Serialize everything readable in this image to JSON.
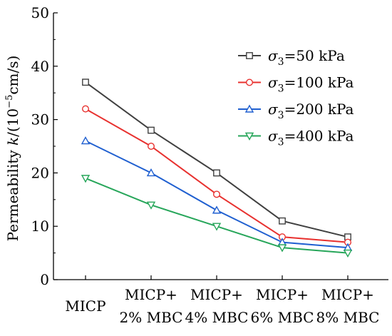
{
  "chart_data": {
    "type": "line",
    "title": "",
    "xlabel": "",
    "ylabel": {
      "prefix": "Permeability ",
      "symbol": "k",
      "middle": "/(10",
      "exponent": "−5",
      "suffix": "cm/s)"
    },
    "ylim": [
      0,
      50
    ],
    "yticks": [
      0,
      10,
      20,
      30,
      40,
      50
    ],
    "categories": [
      {
        "line1": "MICP",
        "line2": ""
      },
      {
        "line1": "MICP+",
        "line2": "2% MBC"
      },
      {
        "line1": "MICP+",
        "line2": "4% MBC"
      },
      {
        "line1": "MICP+",
        "line2": "6% MBC"
      },
      {
        "line1": "MICP+",
        "line2": "8% MBC"
      }
    ],
    "grid": false,
    "legend_position": "top-right",
    "series": [
      {
        "name": "σ3=50 kPa",
        "name_parts": {
          "symbol": "σ",
          "sub": "3",
          "rest": "=50 kPa"
        },
        "values": [
          37,
          28,
          20,
          11,
          8
        ],
        "color": "#404040",
        "marker": "square"
      },
      {
        "name": "σ3=100 kPa",
        "name_parts": {
          "symbol": "σ",
          "sub": "3",
          "rest": "=100 kPa"
        },
        "values": [
          32,
          25,
          16,
          8,
          7
        ],
        "color": "#e8312f",
        "marker": "circle"
      },
      {
        "name": "σ3=200 kPa",
        "name_parts": {
          "symbol": "σ",
          "sub": "3",
          "rest": "=200 kPa"
        },
        "values": [
          26,
          20,
          13,
          7,
          6
        ],
        "color": "#1f5fd0",
        "marker": "triangle-up"
      },
      {
        "name": "σ3=400 kPa",
        "name_parts": {
          "symbol": "σ",
          "sub": "3",
          "rest": "=400 kPa"
        },
        "values": [
          19,
          14,
          10,
          6,
          5
        ],
        "color": "#27a65a",
        "marker": "triangle-down"
      }
    ]
  }
}
